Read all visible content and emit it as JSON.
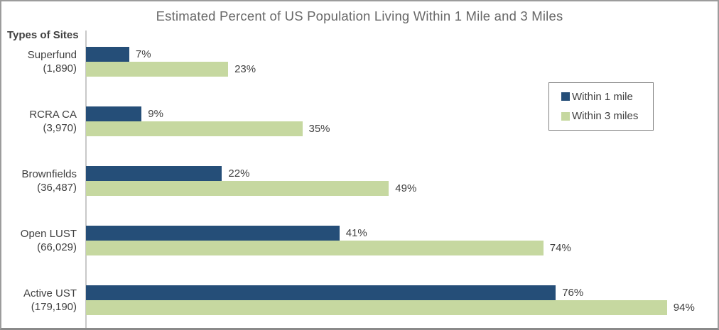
{
  "chart_data": {
    "type": "bar",
    "orientation": "horizontal",
    "title": "Estimated Percent of US Population Living Within 1 Mile and 3 Miles",
    "axis_title": "Types of Sites",
    "xlim": [
      0,
      100
    ],
    "grid": false,
    "legend_position": "upper right",
    "categories": [
      {
        "name": "Superfund",
        "count": "(1,890)"
      },
      {
        "name": "RCRA CA",
        "count": "(3,970)"
      },
      {
        "name": "Brownfields",
        "count": "(36,487)"
      },
      {
        "name": "Open LUST",
        "count": "(66,029)"
      },
      {
        "name": "Active UST",
        "count": "(179,190)"
      }
    ],
    "series": [
      {
        "name": "Within 1 mile",
        "color": "#254e78",
        "values": [
          7,
          9,
          22,
          41,
          76
        ],
        "labels": [
          "7%",
          "9%",
          "22%",
          "41%",
          "76%"
        ]
      },
      {
        "name": "Within 3 miles",
        "color": "#c6d8a0",
        "values": [
          23,
          35,
          49,
          74,
          94
        ],
        "labels": [
          "23%",
          "35%",
          "49%",
          "74%",
          "94%"
        ]
      }
    ]
  },
  "styles": {
    "title_color": "#686868",
    "label_color": "#3f3f3f",
    "axis_line_color": "#c8c8c8",
    "frame_border_color": "#9c9c9c",
    "legend_border_color": "#7f7f7f"
  }
}
